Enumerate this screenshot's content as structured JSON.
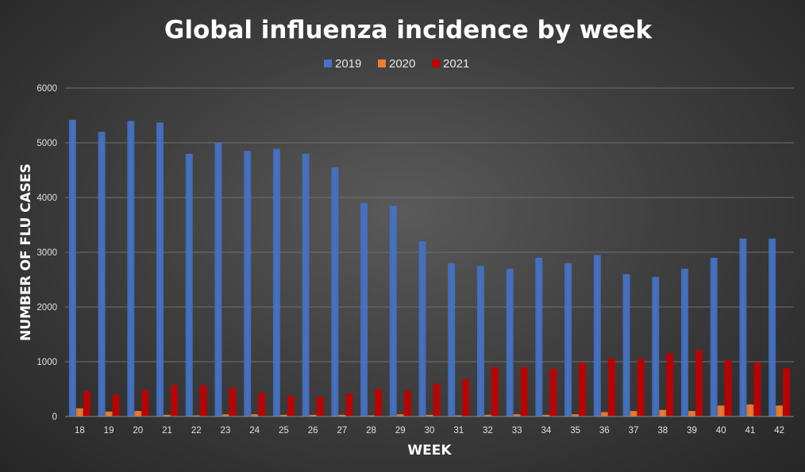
{
  "chart_data": {
    "type": "bar",
    "title": "Global influenza incidence by week",
    "xlabel": "WEEK",
    "ylabel": "NUMBER OF FLU CASES",
    "ylim": [
      0,
      6000
    ],
    "yticks": [
      0,
      1000,
      2000,
      3000,
      4000,
      5000,
      6000
    ],
    "grid": true,
    "legend_position": "top",
    "categories": [
      "18",
      "19",
      "20",
      "21",
      "22",
      "23",
      "24",
      "25",
      "26",
      "27",
      "28",
      "29",
      "30",
      "31",
      "32",
      "33",
      "34",
      "35",
      "36",
      "37",
      "38",
      "39",
      "40",
      "41",
      "42"
    ],
    "series": [
      {
        "name": "2019",
        "color": "#4472C4",
        "values": [
          5420,
          5200,
          5400,
          5370,
          4800,
          5000,
          4850,
          4890,
          4800,
          4550,
          3900,
          3850,
          3200,
          2800,
          2750,
          2700,
          2900,
          2800,
          2950,
          2600,
          2550,
          2700,
          2900,
          3250,
          3250
        ]
      },
      {
        "name": "2020",
        "color": "#ED7D31",
        "values": [
          150,
          90,
          100,
          30,
          20,
          40,
          40,
          30,
          30,
          30,
          20,
          40,
          30,
          20,
          30,
          40,
          30,
          40,
          80,
          100,
          120,
          100,
          200,
          220,
          200
        ]
      },
      {
        "name": "2021",
        "color": "#C00000",
        "values": [
          470,
          400,
          480,
          570,
          570,
          520,
          430,
          380,
          360,
          420,
          500,
          470,
          600,
          680,
          900,
          900,
          870,
          980,
          1060,
          1050,
          1150,
          1210,
          1030,
          990,
          880
        ]
      }
    ]
  }
}
